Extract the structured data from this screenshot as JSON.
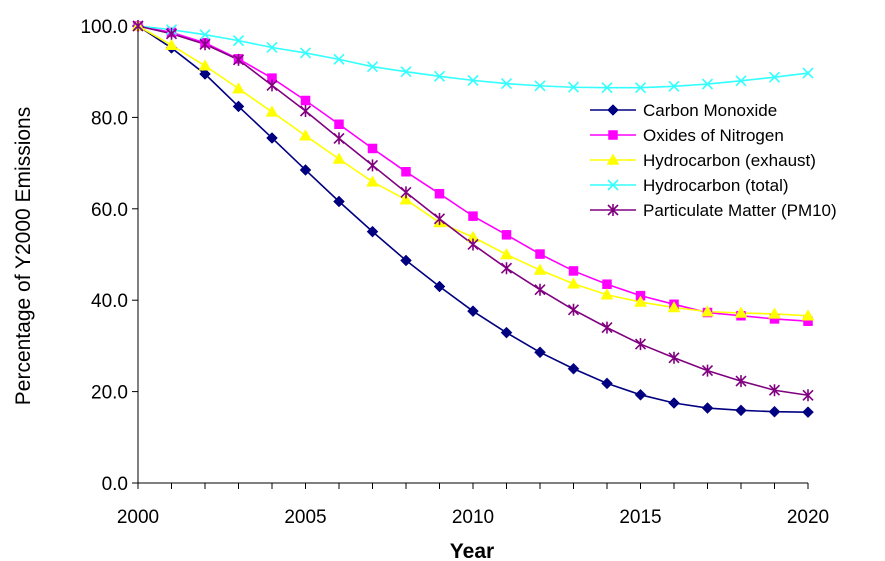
{
  "chart_data": {
    "type": "line",
    "title": "",
    "xlabel": "Year",
    "ylabel": "Percentage of Y2000 Emissions",
    "xlim": [
      2000,
      2020
    ],
    "ylim": [
      0,
      100
    ],
    "xticks": [
      "2000",
      "2005",
      "2010",
      "2015",
      "2020"
    ],
    "yticks": [
      "0.0",
      "20.0",
      "40.0",
      "60.0",
      "80.0",
      "100.0"
    ],
    "grid": false,
    "legend_position": "right",
    "x": [
      2000,
      2001,
      2002,
      2003,
      2004,
      2005,
      2006,
      2007,
      2008,
      2009,
      2010,
      2011,
      2012,
      2013,
      2014,
      2015,
      2016,
      2017,
      2018,
      2019,
      2020
    ],
    "series": [
      {
        "name": "Carbon Monoxide",
        "color": "#000080",
        "marker": "diamond",
        "values": [
          100.0,
          95.2,
          89.5,
          82.4,
          75.5,
          68.5,
          61.6,
          55.0,
          48.7,
          43.0,
          37.6,
          32.9,
          28.6,
          25.0,
          21.8,
          19.3,
          17.5,
          16.4,
          15.9,
          15.6,
          15.5
        ]
      },
      {
        "name": "Oxides of Nitrogen",
        "color": "#ff00ff",
        "marker": "square",
        "values": [
          100.0,
          98.6,
          96.3,
          92.8,
          88.6,
          83.7,
          78.5,
          73.2,
          68.1,
          63.3,
          58.4,
          54.3,
          50.1,
          46.4,
          43.5,
          41.0,
          39.1,
          37.3,
          36.6,
          35.9,
          35.4
        ]
      },
      {
        "name": "Hydrocarbon (exhaust)",
        "color": "#ffff00",
        "marker": "triangle",
        "values": [
          100.0,
          95.8,
          91.3,
          86.3,
          81.2,
          76.0,
          70.9,
          65.9,
          62.0,
          57.0,
          53.8,
          50.0,
          46.6,
          43.6,
          41.2,
          39.6,
          38.4,
          37.5,
          37.2,
          37.0,
          36.6
        ]
      },
      {
        "name": "Hydrocarbon (total)",
        "color": "#33ffff",
        "marker": "x",
        "values": [
          100.0,
          99.2,
          98.1,
          96.8,
          95.3,
          94.1,
          92.7,
          91.1,
          90.0,
          89.0,
          88.1,
          87.4,
          86.9,
          86.6,
          86.5,
          86.5,
          86.8,
          87.3,
          88.0,
          88.8,
          89.7
        ]
      },
      {
        "name": "Particulate Matter (PM10)",
        "color": "#800080",
        "marker": "star",
        "values": [
          100.0,
          98.3,
          96.0,
          92.6,
          87.0,
          81.4,
          75.4,
          69.5,
          63.6,
          57.8,
          52.2,
          47.0,
          42.3,
          37.9,
          34.0,
          30.4,
          27.4,
          24.6,
          22.3,
          20.3,
          19.2
        ]
      }
    ]
  }
}
